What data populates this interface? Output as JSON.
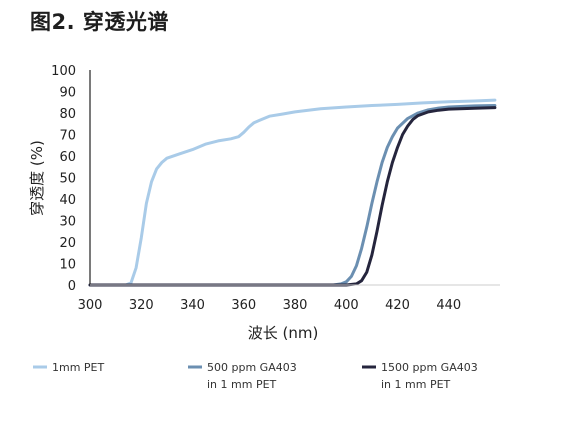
{
  "title": "图2. 穿透光谱",
  "chart_data": {
    "type": "line",
    "xlabel": "波长 (nm)",
    "ylabel": "穿透度 (%)",
    "xlim": [
      300,
      460
    ],
    "ylim": [
      0,
      100
    ],
    "xticks": [
      300,
      320,
      340,
      360,
      380,
      400,
      420,
      440
    ],
    "yticks": [
      0,
      10,
      20,
      30,
      40,
      50,
      60,
      70,
      80,
      90,
      100
    ],
    "grid": false,
    "legend_position": "bottom",
    "series": [
      {
        "name": "1mm PET",
        "label_lines": [
          "1mm PET"
        ],
        "color": "#a9cbe8",
        "x": [
          300,
          314,
          316,
          318,
          320,
          322,
          324,
          326,
          328,
          330,
          335,
          340,
          345,
          350,
          355,
          358,
          360,
          362,
          364,
          366,
          370,
          375,
          380,
          390,
          400,
          410,
          420,
          430,
          440,
          450,
          458
        ],
        "y": [
          0,
          0,
          1,
          8,
          22,
          38,
          48,
          54,
          57,
          59,
          61,
          63,
          65.5,
          67,
          68,
          69,
          71,
          73.5,
          75.5,
          76.5,
          78.5,
          79.5,
          80.5,
          82,
          82.8,
          83.5,
          84,
          84.7,
          85.2,
          85.6,
          86
        ]
      },
      {
        "name": "500 ppm GA403 in 1 mm PET",
        "label_lines": [
          "500 ppm GA403",
          "in 1 mm PET"
        ],
        "color": "#6b8fb1",
        "x": [
          300,
          320,
          340,
          360,
          380,
          395,
          398,
          400,
          402,
          404,
          406,
          408,
          410,
          412,
          414,
          416,
          418,
          420,
          424,
          428,
          432,
          436,
          440,
          450,
          458
        ],
        "y": [
          0,
          0,
          0,
          0,
          0,
          0,
          0.5,
          1.5,
          4,
          9,
          17,
          27,
          38,
          48,
          57,
          64,
          69,
          73,
          77.5,
          80,
          81.5,
          82.3,
          82.8,
          83.3,
          83.5
        ]
      },
      {
        "name": "1500 ppm GA403 in 1 mm PET",
        "label_lines": [
          "1500 ppm GA403",
          "in 1 mm PET"
        ],
        "color": "#25253d",
        "x": [
          300,
          320,
          340,
          360,
          380,
          400,
          404,
          406,
          408,
          410,
          412,
          414,
          416,
          418,
          420,
          422,
          424,
          426,
          428,
          432,
          436,
          440,
          450,
          458
        ],
        "y": [
          0,
          0,
          0,
          0,
          0,
          0,
          0.5,
          2,
          6,
          14,
          25,
          37,
          48,
          57,
          64,
          70,
          74,
          77,
          78.8,
          80.5,
          81.3,
          81.8,
          82.2,
          82.5
        ]
      }
    ]
  }
}
